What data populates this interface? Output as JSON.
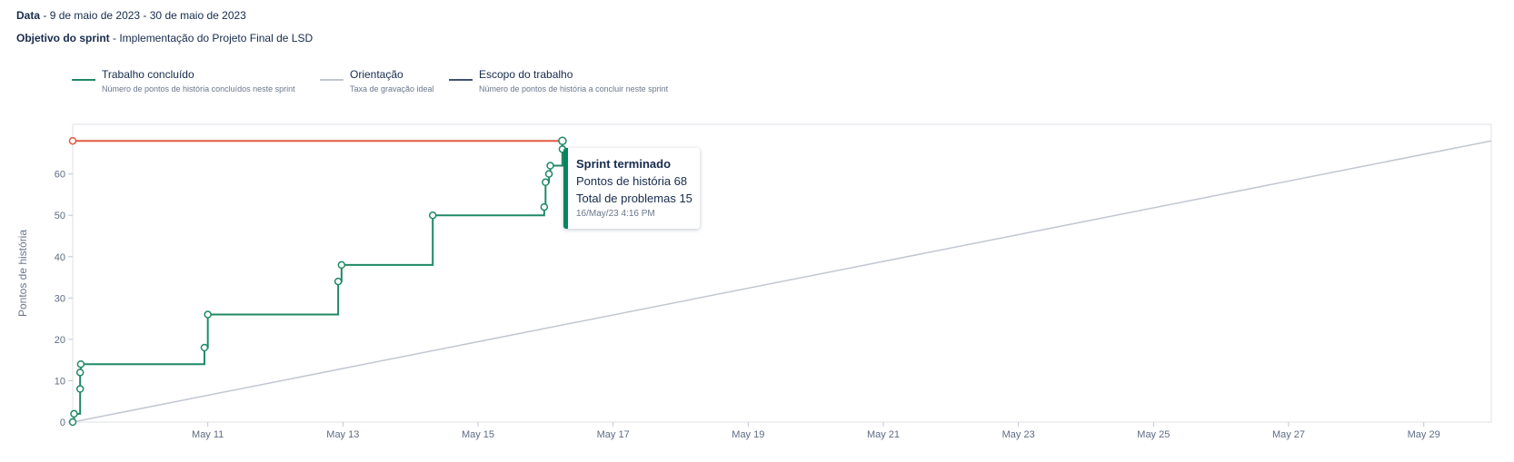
{
  "header": {
    "date_label": "Data",
    "date_value": "9 de maio de 2023 - 30 de maio de 2023",
    "goal_label": "Objetivo do sprint",
    "goal_value": "Implementação do Projeto Final de LSD",
    "separator": " - "
  },
  "legend": [
    {
      "title": "Trabalho concluído",
      "description": "Número de pontos de história concluídos neste sprint",
      "color": "#1f8a63"
    },
    {
      "title": "Orientação",
      "description": "Taxa de gravação ideal",
      "color": "#c1c7d0"
    },
    {
      "title": "Escopo do trabalho",
      "description": "Número de pontos de história a concluir neste sprint",
      "color": "#42526e"
    }
  ],
  "tooltip": {
    "title": "Sprint terminado",
    "line1": "Pontos de história 68",
    "line2": "Total de problemas 15",
    "timestamp": "16/May/23 4:16 PM",
    "accent": "#00875a"
  },
  "chart_data": {
    "type": "line",
    "ylabel": "Pontos de história",
    "xlabel": "",
    "xlim": [
      9.0,
      30.0
    ],
    "ylim": [
      0,
      70
    ],
    "y_ticks": [
      0,
      10,
      20,
      30,
      40,
      50,
      60
    ],
    "x_ticks": [
      {
        "day": 11,
        "label": "May 11"
      },
      {
        "day": 13,
        "label": "May 13"
      },
      {
        "day": 15,
        "label": "May 15"
      },
      {
        "day": 17,
        "label": "May 17"
      },
      {
        "day": 19,
        "label": "May 19"
      },
      {
        "day": 21,
        "label": "May 21"
      },
      {
        "day": 23,
        "label": "May 23"
      },
      {
        "day": 25,
        "label": "May 25"
      },
      {
        "day": 27,
        "label": "May 27"
      },
      {
        "day": 29,
        "label": "May 29"
      }
    ],
    "series": [
      {
        "name": "Trabalho concluído",
        "color": "#1f8a63",
        "step": true,
        "points": [
          {
            "x": 9.0,
            "y": 0
          },
          {
            "x": 9.02,
            "y": 2
          },
          {
            "x": 9.11,
            "y": 8
          },
          {
            "x": 9.11,
            "y": 12
          },
          {
            "x": 9.12,
            "y": 14
          },
          {
            "x": 10.95,
            "y": 18
          },
          {
            "x": 11.0,
            "y": 26
          },
          {
            "x": 12.93,
            "y": 34
          },
          {
            "x": 12.98,
            "y": 38
          },
          {
            "x": 14.33,
            "y": 50
          },
          {
            "x": 15.98,
            "y": 52
          },
          {
            "x": 16.0,
            "y": 58
          },
          {
            "x": 16.05,
            "y": 60
          },
          {
            "x": 16.07,
            "y": 62
          },
          {
            "x": 16.25,
            "y": 66
          },
          {
            "x": 16.25,
            "y": 68
          }
        ]
      },
      {
        "name": "Orientação",
        "color": "#c1c7d0",
        "points": [
          {
            "x": 9.0,
            "y": 0
          },
          {
            "x": 30.0,
            "y": 68
          }
        ]
      },
      {
        "name": "Escopo do trabalho",
        "color": "#e2583e",
        "points": [
          {
            "x": 9.0,
            "y": 68
          },
          {
            "x": 16.25,
            "y": 68
          }
        ]
      }
    ]
  }
}
